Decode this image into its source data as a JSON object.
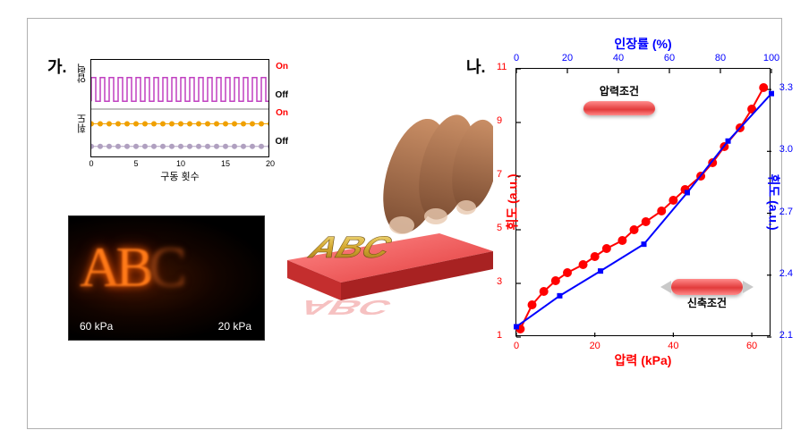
{
  "panel_a": {
    "label": "가.",
    "small_chart": {
      "type": "line",
      "y1_label": "압력",
      "y2_label": "휘도",
      "x_label": "구동 횟수",
      "on_label": "On",
      "off_label": "Off",
      "xlim": [
        0,
        20
      ],
      "xticks": [
        0,
        5,
        10,
        15,
        20
      ],
      "series_pressure": {
        "color": "#c040c0",
        "linewidth": 1.5,
        "type": "square-wave",
        "cycles": 20,
        "y_on": 0.82,
        "y_off": 0.58
      },
      "series_brightness_on": {
        "color": "#f0a000",
        "marker": "circle",
        "marker_size": 3,
        "y": 0.35,
        "npoints": 21
      },
      "series_brightness_off": {
        "color": "#b0a0c0",
        "marker": "circle",
        "marker_size": 3,
        "y": 0.12,
        "npoints": 21
      },
      "on_color": "#ff0000",
      "off_color": "#000000",
      "border_color": "#000000",
      "background": "#ffffff"
    },
    "photo": {
      "text": "ABC",
      "dim_chars": "C",
      "glow_color": "#ff7a18",
      "bg_gradient": [
        "#401500",
        "#120400",
        "#000000"
      ],
      "label_left": "60 kPa",
      "label_right": "20 kPa",
      "label_color": "#ffffff",
      "label_fontsize": 12
    },
    "render": {
      "stamp_text": "ABC",
      "slab_color_top": "#ff6a6a",
      "slab_color_side": "#c42e2e",
      "letter_color": "#d4a82f",
      "letter_highlight": "#f4e28a",
      "reflection_color": "rgba(230,80,80,0.35)",
      "skin_tone": "#b47a55",
      "skin_shadow": "#7d4e33",
      "nail_color": "#e8c9b0"
    }
  },
  "panel_b": {
    "label": "나.",
    "chart": {
      "type": "dual-axis-line",
      "top_axis": {
        "label": "인장률 (%)",
        "color": "#0000ff",
        "ticks": [
          0,
          20,
          40,
          60,
          80,
          100
        ],
        "lim": [
          0,
          100
        ]
      },
      "bottom_axis": {
        "label": "압력 (kPa)",
        "color": "#ff0000",
        "ticks": [
          0,
          20,
          40,
          60
        ],
        "lim": [
          0,
          65
        ]
      },
      "left_axis": {
        "label": "휘도 (a.u.)",
        "color": "#ff0000",
        "ticks": [
          1,
          3,
          5,
          7,
          9,
          11
        ],
        "lim": [
          1,
          11
        ]
      },
      "right_axis": {
        "label": "휘도 (a.u.)",
        "color": "#0000ff",
        "ticks": [
          2.1,
          2.4,
          2.7,
          3.0,
          3.3
        ],
        "lim": [
          2.1,
          3.4
        ]
      },
      "series_red": {
        "color": "#ff0000",
        "marker": "circle",
        "marker_size": 5,
        "line_width": 2,
        "x": [
          1,
          4,
          7,
          10,
          13,
          17,
          20,
          23,
          27,
          30,
          33,
          37,
          40,
          43,
          47,
          50,
          53,
          57,
          60,
          63
        ],
        "y": [
          1.3,
          2.2,
          2.7,
          3.1,
          3.4,
          3.7,
          4.0,
          4.3,
          4.6,
          5.0,
          5.3,
          5.7,
          6.1,
          6.5,
          7.0,
          7.5,
          8.1,
          8.8,
          9.5,
          10.3
        ]
      },
      "series_blue": {
        "color": "#0000ff",
        "marker": "square",
        "marker_size": 6,
        "line_width": 2,
        "x": [
          0,
          17,
          33,
          50,
          67,
          83,
          100
        ],
        "y": [
          2.15,
          2.3,
          2.42,
          2.55,
          2.8,
          3.05,
          3.28
        ]
      },
      "background": "#ffffff",
      "tick_fontsize": 11,
      "label_fontsize": 14
    },
    "insets": {
      "pressure_label": "압력조건",
      "stretch_label": "신축조건",
      "bar_color": "#e23b3b",
      "arrow_color": "#c9c9c9"
    }
  }
}
